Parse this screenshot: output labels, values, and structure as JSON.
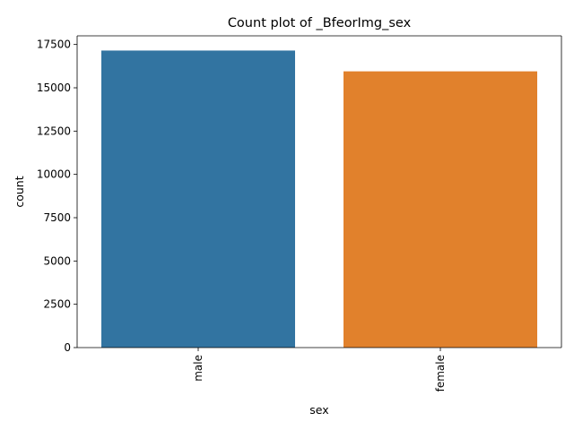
{
  "chart_data": {
    "type": "bar",
    "title": "Count plot of _BfeorImg_sex",
    "xlabel": "sex",
    "ylabel": "count",
    "categories": [
      "male",
      "female"
    ],
    "values": [
      17150,
      15950
    ],
    "ylim": [
      0,
      18000
    ],
    "yticks": [
      0,
      2500,
      5000,
      7500,
      10000,
      12500,
      15000,
      17500
    ],
    "ytick_labels": [
      "0",
      "2500",
      "5000",
      "7500",
      "10000",
      "12500",
      "15000",
      "17500"
    ],
    "xtick_rotation": "vertical",
    "colors": [
      "#3274a1",
      "#e1812c"
    ],
    "grid": false,
    "legend": "none"
  }
}
